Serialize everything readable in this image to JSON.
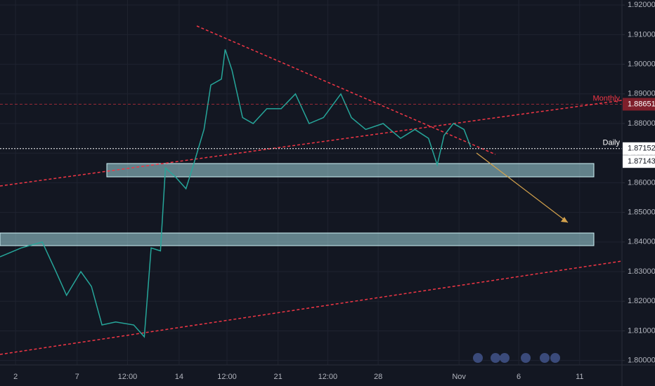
{
  "chart_data": {
    "type": "line",
    "x": [
      0,
      3.4,
      6.8,
      9.0,
      10.7,
      13.0,
      14.7,
      16.4,
      18.6,
      21.5,
      23.2,
      24.3,
      25.8,
      26.6,
      28.2,
      29.9,
      31.1,
      32.8,
      33.9,
      35.6,
      36.2,
      37.3,
      39.0,
      40.7,
      42.9,
      45.2,
      47.5,
      49.7,
      52.0,
      54.8,
      56.5,
      58.8,
      61.6,
      64.4,
      66.7,
      68.9,
      70.3,
      71.4,
      72.9,
      74.6,
      75.7
    ],
    "series": [
      {
        "color": "#26a69a",
        "values": [
          1.835,
          1.838,
          1.84,
          1.83,
          1.822,
          1.83,
          1.825,
          1.812,
          1.813,
          1.812,
          1.808,
          1.838,
          1.837,
          1.865,
          1.862,
          1.858,
          1.866,
          1.878,
          1.893,
          1.895,
          1.905,
          1.898,
          1.882,
          1.88,
          1.885,
          1.885,
          1.89,
          1.88,
          1.882,
          1.89,
          1.882,
          1.878,
          1.88,
          1.875,
          1.878,
          1.875,
          1.866,
          1.876,
          1.88,
          1.878,
          1.872
        ]
      }
    ],
    "xlim": [
      0,
      100
    ],
    "xticks": [
      {
        "value": 2.5,
        "label": "2"
      },
      {
        "value": 12.4,
        "label": "7"
      },
      {
        "value": 20.5,
        "label": "12:00"
      },
      {
        "value": 28.8,
        "label": "14"
      },
      {
        "value": 36.5,
        "label": "12:00"
      },
      {
        "value": 44.7,
        "label": "21"
      },
      {
        "value": 52.7,
        "label": "12:00"
      },
      {
        "value": 60.8,
        "label": "28"
      },
      {
        "value": 73.8,
        "label": "Nov"
      },
      {
        "value": 83.4,
        "label": "6"
      },
      {
        "value": 93.2,
        "label": "11"
      }
    ],
    "ylim": [
      1.7985,
      1.9217
    ],
    "yticks": [
      {
        "value": 1.8,
        "label": "1.80000"
      },
      {
        "value": 1.81,
        "label": "1.81000"
      },
      {
        "value": 1.82,
        "label": "1.82000"
      },
      {
        "value": 1.83,
        "label": "1.83000"
      },
      {
        "value": 1.84,
        "label": "1.84000"
      },
      {
        "value": 1.85,
        "label": "1.85000"
      },
      {
        "value": 1.86,
        "label": "1.86000"
      },
      {
        "value": 1.87,
        "label": "1.87000"
      },
      {
        "value": 1.88,
        "label": "1.88000"
      },
      {
        "value": 1.89,
        "label": "1.89000"
      },
      {
        "value": 1.9,
        "label": "1.90000"
      },
      {
        "value": 1.91,
        "label": "1.91000"
      },
      {
        "value": 1.92,
        "label": "1.92000"
      }
    ],
    "grid": true,
    "levels": [
      {
        "name": "Monthly",
        "value": 1.88651,
        "color": "#f23645"
      },
      {
        "name": "Daily",
        "value": 1.87152,
        "color": "#ffffff"
      }
    ],
    "last_price": 1.87143
  }
}
